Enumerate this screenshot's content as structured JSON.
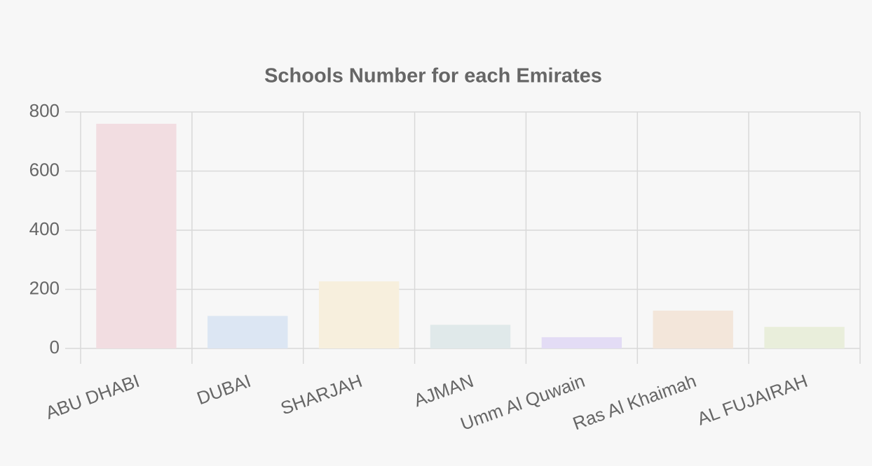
{
  "chart_data": {
    "type": "bar",
    "title": "Schools Number for each Emirates",
    "categories": [
      "ABU DHABI",
      "DUBAI",
      "SHARJAH",
      "AJMAN",
      "Umm Al Quwain",
      "Ras Al Khaimah",
      "AL FUJAIRAH"
    ],
    "values": [
      760,
      110,
      227,
      80,
      38,
      128,
      73
    ],
    "colors": [
      "#f2dde1",
      "#dce6f3",
      "#f7efdd",
      "#e0e9ea",
      "#e3dcf5",
      "#f3e6da",
      "#e9eedb"
    ],
    "ylim": [
      0,
      800
    ],
    "yticks": [
      0,
      200,
      400,
      600,
      800
    ],
    "grid": true
  }
}
